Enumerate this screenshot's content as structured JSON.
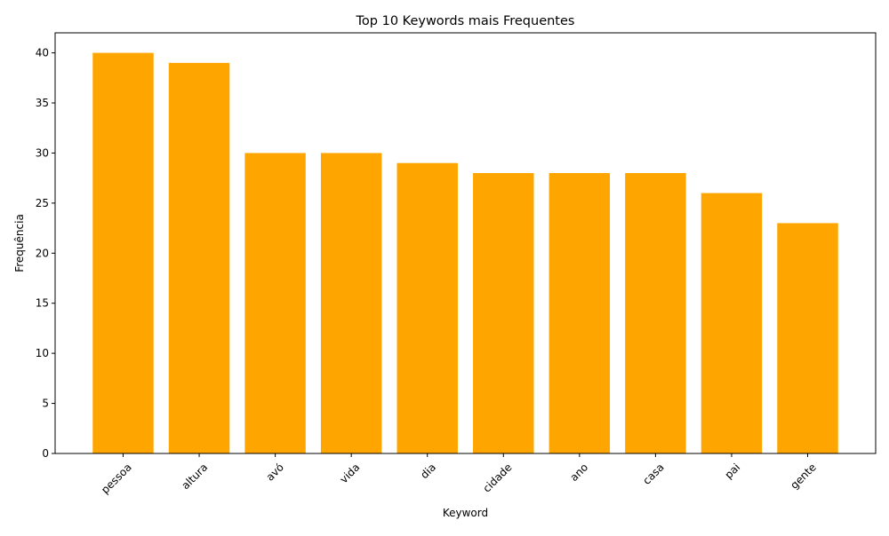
{
  "chart_data": {
    "type": "bar",
    "title": "Top 10 Keywords mais Frequentes",
    "xlabel": "Keyword",
    "ylabel": "Frequência",
    "categories": [
      "pessoa",
      "altura",
      "avó",
      "vida",
      "dia",
      "cidade",
      "ano",
      "casa",
      "pai",
      "gente"
    ],
    "values": [
      40,
      39,
      30,
      30,
      29,
      28,
      28,
      28,
      26,
      23
    ],
    "ylim": [
      0,
      42
    ],
    "yticks": [
      0,
      5,
      10,
      15,
      20,
      25,
      30,
      35,
      40
    ],
    "bar_color": "#FFA500",
    "grid": false,
    "legend": "none",
    "x_tick_rotation": -45
  }
}
